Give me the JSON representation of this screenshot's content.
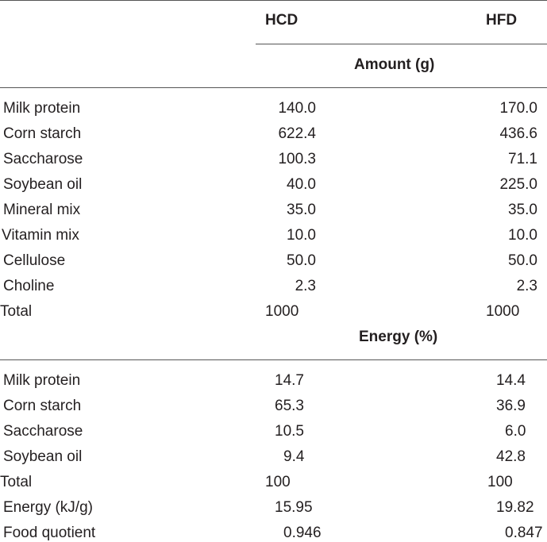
{
  "headers": {
    "col1": "HCD",
    "col2": "HFD"
  },
  "sections": [
    {
      "title": "Amount (g)",
      "rows": [
        {
          "label": "Milk protein",
          "hcd": "140.0",
          "hfd": "170.0"
        },
        {
          "label": "Corn starch",
          "hcd": "622.4",
          "hfd": "436.6"
        },
        {
          "label": "Saccharose",
          "hcd": "100.3",
          "hfd": "71.1"
        },
        {
          "label": "Soybean oil",
          "hcd": "40.0",
          "hfd": "225.0"
        },
        {
          "label": "Mineral mix",
          "hcd": "35.0",
          "hfd": "35.0"
        },
        {
          "label": "Vitamin mix",
          "hcd": "10.0",
          "hfd": "10.0"
        },
        {
          "label": "Cellulose",
          "hcd": "50.0",
          "hfd": "50.0"
        },
        {
          "label": "Choline",
          "hcd": "2.3",
          "hfd": "2.3"
        },
        {
          "label": "Total",
          "hcd": "1000",
          "hfd": "1000"
        }
      ]
    },
    {
      "title": "Energy (%)",
      "rows": [
        {
          "label": "Milk protein",
          "hcd": "14.7",
          "hfd": "14.4"
        },
        {
          "label": "Corn starch",
          "hcd": "65.3",
          "hfd": "36.9"
        },
        {
          "label": "Saccharose",
          "hcd": "10.5",
          "hfd": "6.0"
        },
        {
          "label": "Soybean oil",
          "hcd": "9.4",
          "hfd": "42.8"
        },
        {
          "label": "Total",
          "hcd": "100",
          "hfd": "100"
        },
        {
          "label": "Energy (kJ/g)",
          "hcd": "15.95",
          "hfd": "19.82"
        },
        {
          "label": "Food quotient",
          "hcd": "0.946",
          "hfd": "0.847"
        }
      ]
    }
  ]
}
